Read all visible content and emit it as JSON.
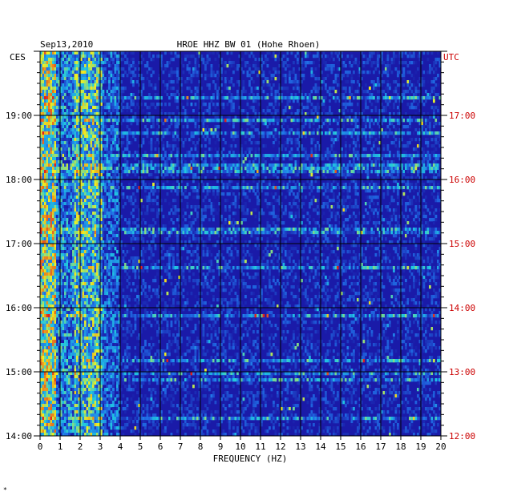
{
  "chart_data": {
    "type": "heatmap",
    "title": "HROE HHZ BW 01 (Hohe Rhoen)",
    "date": "Sep13,2010",
    "left_tz": "CES",
    "right_tz": "UTC",
    "xlabel": "FREQUENCY (HZ)",
    "xlim": [
      0,
      20
    ],
    "x_ticks": [
      "0",
      "1",
      "2",
      "3",
      "4",
      "5",
      "6",
      "7",
      "8",
      "9",
      "10",
      "11",
      "12",
      "13",
      "14",
      "15",
      "16",
      "17",
      "18",
      "19",
      "20"
    ],
    "y_range_ces_hours": [
      14,
      20
    ],
    "y_ticks_left": [
      "14:00",
      "15:00",
      "16:00",
      "17:00",
      "18:00",
      "19:00"
    ],
    "y_ticks_right": [
      "12:00",
      "13:00",
      "14:00",
      "15:00",
      "16:00",
      "17:00"
    ],
    "grid": true,
    "colors": {
      "background": "#1a1aa8",
      "dark": "#0a0a70",
      "cyan": "#20c8e0",
      "yellow": "#f0f020",
      "red": "#e02020",
      "right_label": "#cc0000",
      "grid": "#000000"
    }
  },
  "footer_mark": "*"
}
